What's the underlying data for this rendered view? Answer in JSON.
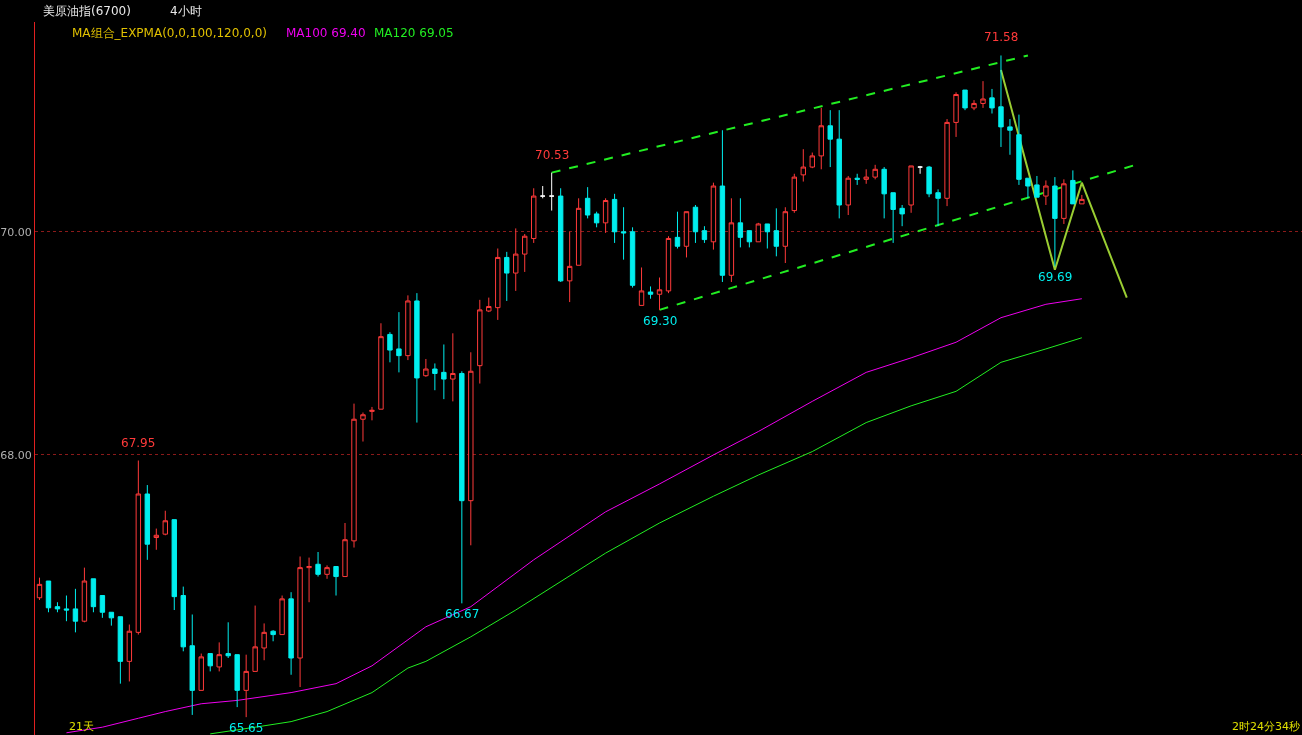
{
  "chart_data": {
    "type": "candlestick",
    "title": "美原油指(6700)",
    "subtitle": "4小时",
    "legend_title": "MA组合_EXPMA(0,0,100,120,0,0)",
    "categories": [
      null,
      null,
      null,
      null,
      null,
      null,
      null,
      null,
      null,
      null,
      null,
      null,
      null,
      null,
      null,
      null,
      null,
      null,
      null,
      null,
      null,
      null,
      null,
      null,
      null,
      null,
      null,
      null,
      null,
      null,
      null,
      null,
      null,
      null,
      null,
      null,
      null,
      null,
      null,
      null,
      null,
      null,
      null,
      null,
      null,
      null,
      null,
      null,
      null,
      null,
      null,
      null,
      null,
      null,
      null,
      null,
      null,
      null,
      null,
      null,
      null,
      null,
      null,
      null,
      null,
      null,
      null,
      null,
      null,
      null,
      null,
      null,
      null,
      null,
      null,
      null,
      null,
      null,
      null,
      null,
      null,
      null,
      null,
      null,
      null,
      null,
      null,
      null,
      null,
      null,
      null,
      null,
      null,
      null,
      null,
      null,
      null,
      null,
      null,
      null,
      null,
      null,
      null,
      null,
      null,
      null,
      null,
      null,
      null,
      null,
      null,
      null,
      null,
      null,
      null,
      null,
      null,
      null,
      null,
      null,
      null,
      null,
      null,
      null,
      null,
      null,
      null,
      null,
      null,
      null,
      null,
      null,
      null,
      null,
      null,
      null,
      null,
      null,
      null,
      null,
      null
    ],
    "colors": [
      "#ff3a3a",
      "#00eeee",
      "#00eeee",
      "#00eeee",
      "#00eeee",
      "#ff3a3a",
      "#00eeee",
      "#00eeee",
      "#00eeee",
      "#00eeee",
      "#ff3a3a",
      "#ff3a3a",
      "#00eeee",
      "#ff3a3a",
      "#ff3a3a",
      "#00eeee",
      "#00eeee",
      "#00eeee",
      "#ff3a3a",
      "#00eeee",
      "#ff3a3a",
      "#00eeee",
      "#00eeee",
      "#ff3a3a",
      "#ff3a3a",
      "#ff3a3a",
      "#00eeee",
      "#ff3a3a",
      "#00eeee",
      "#ff3a3a",
      "#ff3a3a",
      "#00eeee",
      "#ff3a3a",
      "#00eeee",
      "#ff3a3a",
      "#ff3a3a",
      "#ff3a3a",
      "#ff3a3a",
      "#ff3a3a",
      "#00eeee",
      "#00eeee",
      "#ff3a3a",
      "#00eeee",
      "#ff3a3a",
      "#00eeee",
      "#00eeee",
      "#ff3a3a",
      "#00eeee",
      "#ff3a3a",
      "#ff3a3a",
      "#ff3a3a",
      "#ff3a3a",
      "#00eeee",
      "#ff3a3a",
      "#ff3a3a",
      "#ff3a3a",
      "#ffffff",
      "#ffffff",
      "#00eeee",
      "#ff3a3a",
      "#ff3a3a",
      "#00eeee",
      "#00eeee",
      "#ff3a3a",
      "#00eeee",
      "#00eeee",
      "#00eeee",
      "#ff3a3a",
      "#00eeee",
      "#ff3a3a",
      "#ff3a3a",
      "#00eeee",
      "#ff3a3a",
      "#00eeee",
      "#00eeee",
      "#ff3a3a",
      "#00eeee",
      "#ff3a3a",
      "#00eeee",
      "#00eeee",
      "#ff3a3a",
      "#00eeee",
      "#00eeee",
      "#ff3a3a",
      "#ff3a3a",
      "#ff3a3a",
      "#ff3a3a",
      "#ff3a3a",
      "#00eeee",
      "#00eeee",
      "#ff3a3a",
      "#00eeee",
      "#ff3a3a",
      "#ff3a3a",
      "#00eeee",
      "#00eeee",
      "#00eeee",
      "#ff3a3a",
      "#ffffff",
      "#00eeee",
      "#00eeee",
      "#ff3a3a",
      "#ff3a3a",
      "#00eeee",
      "#ff3a3a",
      "#ff3a3a",
      "#00eeee",
      "#00eeee",
      "#00eeee",
      "#00eeee",
      "#00eeee",
      "#00eeee",
      "#ff3a3a",
      "#00eeee",
      "#ff3a3a",
      "#00eeee",
      "#ff3a3a",
      null,
      null,
      null,
      null,
      null,
      null,
      null,
      null,
      null,
      null,
      null,
      null,
      null,
      null,
      null,
      null,
      null,
      null,
      null,
      null,
      null,
      null,
      null,
      null
    ],
    "ohlc": [
      [
        66.72,
        66.9,
        66.7,
        66.84
      ],
      [
        66.87,
        66.87,
        66.59,
        66.63
      ],
      [
        66.64,
        66.68,
        66.59,
        66.62
      ],
      [
        66.62,
        66.74,
        66.51,
        66.61
      ],
      [
        66.62,
        66.8,
        66.41,
        66.51
      ],
      [
        66.51,
        66.99,
        66.5,
        66.87
      ],
      [
        66.89,
        66.89,
        66.59,
        66.64
      ],
      [
        66.74,
        66.74,
        66.54,
        66.59
      ],
      [
        66.59,
        66.59,
        66.47,
        66.54
      ],
      [
        66.55,
        66.55,
        65.95,
        66.15
      ],
      [
        66.15,
        66.48,
        65.97,
        66.42
      ],
      [
        66.41,
        67.95,
        66.39,
        67.65
      ],
      [
        67.65,
        67.73,
        67.06,
        67.2
      ],
      [
        67.26,
        67.34,
        67.15,
        67.28
      ],
      [
        67.29,
        67.5,
        67.28,
        67.41
      ],
      [
        67.42,
        67.42,
        66.61,
        66.73
      ],
      [
        66.74,
        66.82,
        66.24,
        66.28
      ],
      [
        66.29,
        66.57,
        65.67,
        65.89
      ],
      [
        65.89,
        66.22,
        65.89,
        66.19
      ],
      [
        66.22,
        66.22,
        66.06,
        66.11
      ],
      [
        66.1,
        66.32,
        66.06,
        66.21
      ],
      [
        66.22,
        66.5,
        66.18,
        66.2
      ],
      [
        66.21,
        66.21,
        65.74,
        65.89
      ],
      [
        65.89,
        66.21,
        65.65,
        66.06
      ],
      [
        66.06,
        66.65,
        66.06,
        66.28
      ],
      [
        66.27,
        66.49,
        66.16,
        66.41
      ],
      [
        66.42,
        66.43,
        66.33,
        66.39
      ],
      [
        66.39,
        66.74,
        66.39,
        66.71
      ],
      [
        66.71,
        66.77,
        66.03,
        66.18
      ],
      [
        66.18,
        67.09,
        65.92,
        66.99
      ],
      [
        66.99,
        67.08,
        66.68,
        67.0
      ],
      [
        67.02,
        67.13,
        66.91,
        66.93
      ],
      [
        66.93,
        67.01,
        66.89,
        66.99
      ],
      [
        67.0,
        67.0,
        66.74,
        66.91
      ],
      [
        66.91,
        67.39,
        66.91,
        67.24
      ],
      [
        67.23,
        68.46,
        67.17,
        68.32
      ],
      [
        68.32,
        68.38,
        68.12,
        68.36
      ],
      [
        68.39,
        68.43,
        68.31,
        68.4
      ],
      [
        68.41,
        69.18,
        68.41,
        69.06
      ],
      [
        69.08,
        69.1,
        68.83,
        68.94
      ],
      [
        68.95,
        69.28,
        68.74,
        68.89
      ],
      [
        68.89,
        69.43,
        68.85,
        69.38
      ],
      [
        69.38,
        69.45,
        68.29,
        68.69
      ],
      [
        68.71,
        68.86,
        68.7,
        68.77
      ],
      [
        68.77,
        68.82,
        68.58,
        68.73
      ],
      [
        68.74,
        68.99,
        68.5,
        68.68
      ],
      [
        68.68,
        69.09,
        68.48,
        68.73
      ],
      [
        68.73,
        68.75,
        66.67,
        67.59
      ],
      [
        67.59,
        68.92,
        67.19,
        68.75
      ],
      [
        68.8,
        69.39,
        68.64,
        69.3
      ],
      [
        69.29,
        69.41,
        69.28,
        69.33
      ],
      [
        69.32,
        69.85,
        69.21,
        69.77
      ],
      [
        69.77,
        69.82,
        69.38,
        69.63
      ],
      [
        69.63,
        70.03,
        69.47,
        69.8
      ],
      [
        69.8,
        69.98,
        69.64,
        69.96
      ],
      [
        69.94,
        70.39,
        69.9,
        70.32
      ],
      [
        70.32,
        70.41,
        70.3,
        70.32
      ],
      [
        70.32,
        70.53,
        70.19,
        70.32
      ],
      [
        70.32,
        70.39,
        69.55,
        69.56
      ],
      [
        69.56,
        70.0,
        69.37,
        69.69
      ],
      [
        69.7,
        70.3,
        69.7,
        70.21
      ],
      [
        70.3,
        70.4,
        70.12,
        70.15
      ],
      [
        70.16,
        70.18,
        70.04,
        70.08
      ],
      [
        70.08,
        70.3,
        69.99,
        70.28
      ],
      [
        70.29,
        70.34,
        69.9,
        70.0
      ],
      [
        70.0,
        70.22,
        69.75,
        69.99
      ],
      [
        70.0,
        70.04,
        69.5,
        69.52
      ],
      [
        69.34,
        69.68,
        69.34,
        69.47
      ],
      [
        69.46,
        69.51,
        69.4,
        69.44
      ],
      [
        69.44,
        69.59,
        69.3,
        69.48
      ],
      [
        69.47,
        69.96,
        69.45,
        69.94
      ],
      [
        69.95,
        70.18,
        69.85,
        69.87
      ],
      [
        69.87,
        70.18,
        69.77,
        70.18
      ],
      [
        70.22,
        70.24,
        69.9,
        70.0
      ],
      [
        70.01,
        70.05,
        69.9,
        69.93
      ],
      [
        69.91,
        70.44,
        69.84,
        70.41
      ],
      [
        70.41,
        70.91,
        69.55,
        69.61
      ],
      [
        69.61,
        70.3,
        69.55,
        70.08
      ],
      [
        70.08,
        70.3,
        69.86,
        69.95
      ],
      [
        70.01,
        70.01,
        69.86,
        69.91
      ],
      [
        69.91,
        70.08,
        69.91,
        70.07
      ],
      [
        70.07,
        70.07,
        69.85,
        70.0
      ],
      [
        70.01,
        70.21,
        69.78,
        69.87
      ],
      [
        69.87,
        70.22,
        69.72,
        70.18
      ],
      [
        70.19,
        70.52,
        70.17,
        70.49
      ],
      [
        70.51,
        70.74,
        70.45,
        70.58
      ],
      [
        70.58,
        70.71,
        70.57,
        70.68
      ],
      [
        70.68,
        71.11,
        70.56,
        70.95
      ],
      [
        70.95,
        71.09,
        70.58,
        70.83
      ],
      [
        70.83,
        71.09,
        70.12,
        70.24
      ],
      [
        70.24,
        70.5,
        70.15,
        70.48
      ],
      [
        70.48,
        70.52,
        70.42,
        70.47
      ],
      [
        70.47,
        70.56,
        70.43,
        70.49
      ],
      [
        70.49,
        70.6,
        70.47,
        70.56
      ],
      [
        70.56,
        70.58,
        70.12,
        70.34
      ],
      [
        70.35,
        70.35,
        69.9,
        70.2
      ],
      [
        70.21,
        70.24,
        70.05,
        70.16
      ],
      [
        70.24,
        70.59,
        70.17,
        70.59
      ],
      [
        70.58,
        70.59,
        70.52,
        70.58
      ],
      [
        70.58,
        70.59,
        70.31,
        70.34
      ],
      [
        70.35,
        70.38,
        70.05,
        70.3
      ],
      [
        70.3,
        71.01,
        70.23,
        70.98
      ],
      [
        70.98,
        71.25,
        70.85,
        71.23
      ],
      [
        71.27,
        71.27,
        71.09,
        71.11
      ],
      [
        71.11,
        71.18,
        71.09,
        71.15
      ],
      [
        71.15,
        71.35,
        71.11,
        71.19
      ],
      [
        71.2,
        71.28,
        71.06,
        71.11
      ],
      [
        71.12,
        71.58,
        70.76,
        70.94
      ],
      [
        70.94,
        71.01,
        70.69,
        70.91
      ],
      [
        70.87,
        71.05,
        70.42,
        70.47
      ],
      [
        70.48,
        70.48,
        70.3,
        70.41
      ],
      [
        70.42,
        70.5,
        70.31,
        70.31
      ],
      [
        70.32,
        70.46,
        70.24,
        70.41
      ],
      [
        70.41,
        70.49,
        69.69,
        70.12
      ],
      [
        70.12,
        70.47,
        70.07,
        70.43
      ],
      [
        70.46,
        70.55,
        70.25,
        70.25
      ],
      [
        70.25,
        70.33,
        70.25,
        70.29
      ],
      null,
      null,
      null,
      null,
      null,
      null,
      null,
      null,
      null,
      null,
      null,
      null,
      null,
      null,
      null,
      null,
      null,
      null,
      null,
      null,
      null,
      null,
      null,
      null
    ],
    "value_labels": [
      null,
      null,
      null,
      null,
      null,
      null,
      null,
      null,
      null,
      null,
      null,
      "67.95",
      null,
      null,
      null,
      null,
      null,
      null,
      null,
      null,
      null,
      null,
      null,
      "65.65",
      null,
      null,
      null,
      null,
      null,
      null,
      null,
      null,
      null,
      null,
      null,
      null,
      null,
      null,
      null,
      null,
      null,
      null,
      null,
      null,
      null,
      null,
      null,
      "66.67",
      null,
      null,
      null,
      null,
      null,
      null,
      null,
      null,
      null,
      "70.53",
      null,
      null,
      null,
      null,
      null,
      null,
      null,
      null,
      null,
      null,
      null,
      "69.30",
      null,
      null,
      null,
      null,
      null,
      null,
      null,
      null,
      null,
      null,
      null,
      null,
      null,
      null,
      null,
      null,
      null,
      null,
      null,
      null,
      null,
      null,
      null,
      null,
      null,
      null,
      null,
      null,
      null,
      null,
      null,
      null,
      null,
      null,
      null,
      null,
      null,
      "71.58",
      null,
      null,
      null,
      null,
      null,
      "69.69",
      null,
      null,
      null,
      null,
      null,
      null,
      null,
      null,
      null,
      null,
      null,
      null,
      null,
      null,
      null,
      null,
      null,
      null,
      null,
      null,
      null,
      null,
      null,
      null,
      null,
      null,
      null
    ],
    "series": [
      {
        "name": "MA100 69.40",
        "type": "line",
        "color": "#ee00ee",
        "values": [
          null,
          null,
          null,
          65.51,
          null,
          null,
          null,
          65.56,
          null,
          null,
          null,
          65.64,
          null,
          null,
          65.7,
          null,
          null,
          null,
          65.77,
          null,
          null,
          null,
          65.8,
          null,
          null,
          null,
          null,
          null,
          65.87,
          null,
          null,
          null,
          null,
          65.95,
          null,
          null,
          null,
          66.11,
          null,
          null,
          null,
          null,
          null,
          66.46,
          null,
          null,
          null,
          null,
          66.64,
          null,
          null,
          null,
          null,
          null,
          null,
          67.06,
          null,
          null,
          null,
          null,
          null,
          null,
          null,
          67.49,
          null,
          null,
          null,
          null,
          null,
          67.74,
          null,
          null,
          null,
          null,
          null,
          68.0,
          null,
          null,
          null,
          null,
          68.21,
          null,
          null,
          null,
          null,
          null,
          68.48,
          null,
          null,
          null,
          null,
          null,
          68.74,
          null,
          null,
          null,
          null,
          68.87,
          null,
          null,
          null,
          null,
          69.01,
          null,
          null,
          null,
          null,
          69.23,
          null,
          null,
          null,
          null,
          69.35,
          null,
          null,
          null,
          69.4,
          null,
          null,
          null,
          null,
          null,
          null,
          null,
          null,
          null,
          null,
          null,
          null,
          null,
          null,
          null,
          null,
          null,
          null,
          null,
          null,
          null,
          null,
          null,
          null
        ]
      },
      {
        "name": "MA120 69.05",
        "type": "line",
        "color": "#22ee22",
        "values": [
          null,
          null,
          null,
          null,
          null,
          null,
          null,
          null,
          null,
          null,
          null,
          null,
          null,
          null,
          null,
          null,
          null,
          null,
          null,
          65.5,
          null,
          null,
          null,
          null,
          65.56,
          null,
          null,
          null,
          65.61,
          null,
          null,
          null,
          65.7,
          null,
          null,
          null,
          null,
          65.87,
          null,
          null,
          null,
          66.09,
          null,
          66.15,
          null,
          null,
          null,
          null,
          66.37,
          null,
          null,
          null,
          null,
          66.61,
          null,
          null,
          null,
          null,
          null,
          null,
          null,
          null,
          null,
          67.12,
          null,
          null,
          null,
          null,
          null,
          67.39,
          null,
          null,
          null,
          null,
          null,
          67.63,
          null,
          null,
          null,
          null,
          67.82,
          null,
          null,
          null,
          null,
          null,
          68.03,
          null,
          null,
          null,
          null,
          null,
          68.29,
          null,
          null,
          null,
          null,
          68.44,
          null,
          null,
          null,
          null,
          68.57,
          null,
          null,
          null,
          null,
          68.83,
          null,
          null,
          null,
          null,
          68.95,
          null,
          null,
          null,
          69.05,
          null,
          null,
          null,
          null,
          null,
          null,
          null,
          null,
          null,
          null,
          null,
          null,
          null,
          null,
          null,
          null,
          null,
          null,
          null,
          null,
          null,
          null,
          null,
          null
        ]
      },
      {
        "type": "line",
        "color": "#22ee22",
        "line_style": "dashed",
        "values": [
          null,
          null,
          null,
          null,
          null,
          null,
          null,
          null,
          null,
          null,
          null,
          null,
          null,
          null,
          null,
          null,
          null,
          null,
          null,
          null,
          null,
          null,
          null,
          null,
          null,
          null,
          null,
          null,
          null,
          null,
          null,
          null,
          null,
          null,
          null,
          null,
          null,
          null,
          null,
          null,
          null,
          null,
          null,
          null,
          null,
          null,
          null,
          null,
          null,
          null,
          null,
          null,
          null,
          null,
          null,
          null,
          null,
          70.53,
          null,
          null,
          null,
          null,
          null,
          null,
          null,
          null,
          null,
          null,
          null,
          null,
          null,
          null,
          null,
          null,
          null,
          null,
          null,
          null,
          null,
          null,
          null,
          null,
          null,
          null,
          null,
          null,
          null,
          null,
          null,
          null,
          null,
          null,
          null,
          null,
          null,
          null,
          null,
          null,
          null,
          null,
          null,
          null,
          null,
          null,
          null,
          null,
          null,
          null,
          null,
          null,
          71.58,
          null,
          null,
          null,
          null,
          null,
          null,
          null,
          null,
          null,
          null,
          null,
          null,
          null,
          null,
          null,
          null,
          null,
          null,
          null,
          null,
          null,
          null,
          null,
          null,
          null,
          null,
          null,
          null,
          null,
          null
        ]
      },
      {
        "type": "line",
        "color": "#22ee22",
        "line_style": "dashed",
        "values": [
          null,
          null,
          null,
          null,
          null,
          null,
          null,
          null,
          null,
          null,
          null,
          null,
          null,
          null,
          null,
          null,
          null,
          null,
          null,
          null,
          null,
          null,
          null,
          null,
          null,
          null,
          null,
          null,
          null,
          null,
          null,
          null,
          null,
          null,
          null,
          null,
          null,
          null,
          null,
          null,
          null,
          null,
          null,
          null,
          null,
          null,
          null,
          null,
          null,
          null,
          null,
          null,
          null,
          null,
          null,
          null,
          null,
          null,
          null,
          null,
          null,
          null,
          null,
          null,
          null,
          null,
          null,
          null,
          null,
          69.3,
          null,
          null,
          null,
          null,
          null,
          null,
          null,
          null,
          null,
          null,
          null,
          null,
          null,
          null,
          null,
          null,
          null,
          null,
          null,
          null,
          null,
          null,
          null,
          null,
          null,
          null,
          null,
          null,
          null,
          null,
          null,
          null,
          null,
          null,
          null,
          null,
          null,
          null,
          null,
          null,
          null,
          null,
          null,
          null,
          null,
          null,
          null,
          null,
          null,
          null,
          null,
          null,
          70.6,
          null,
          null,
          null,
          null,
          null,
          null,
          null,
          null,
          null,
          null,
          null,
          null,
          null,
          null,
          null,
          null,
          null,
          null
        ]
      },
      {
        "type": "line",
        "color": "#9acd32",
        "values": [
          null,
          null,
          null,
          null,
          null,
          null,
          null,
          null,
          null,
          null,
          null,
          null,
          null,
          null,
          null,
          null,
          null,
          null,
          null,
          null,
          null,
          null,
          null,
          null,
          null,
          null,
          null,
          null,
          null,
          null,
          null,
          null,
          null,
          null,
          null,
          null,
          null,
          null,
          null,
          null,
          null,
          null,
          null,
          null,
          null,
          null,
          null,
          null,
          null,
          null,
          null,
          null,
          null,
          null,
          null,
          null,
          null,
          null,
          null,
          null,
          null,
          null,
          null,
          null,
          null,
          null,
          null,
          null,
          null,
          null,
          null,
          null,
          null,
          null,
          null,
          null,
          null,
          null,
          null,
          null,
          null,
          null,
          null,
          null,
          null,
          null,
          null,
          null,
          null,
          null,
          null,
          null,
          null,
          null,
          null,
          null,
          null,
          null,
          null,
          null,
          null,
          null,
          null,
          null,
          null,
          null,
          null,
          71.45,
          null,
          null,
          null,
          null,
          null,
          69.66,
          null,
          null,
          70.44,
          null,
          null,
          null,
          null,
          69.41,
          null,
          null,
          null,
          null,
          null,
          null,
          null,
          null,
          null,
          null,
          null,
          null,
          null,
          null,
          null,
          null,
          null,
          null,
          null
        ]
      }
    ],
    "ylim": [
      65.49,
      71.88
    ],
    "yticks": [
      {
        "value": 68,
        "label": "68.00"
      },
      {
        "value": 70,
        "label": "70.00"
      }
    ],
    "grid": "y",
    "tick_labels": "y",
    "legend": "top left",
    "annotations": [
      "21天",
      "2时24分34秒"
    ]
  }
}
